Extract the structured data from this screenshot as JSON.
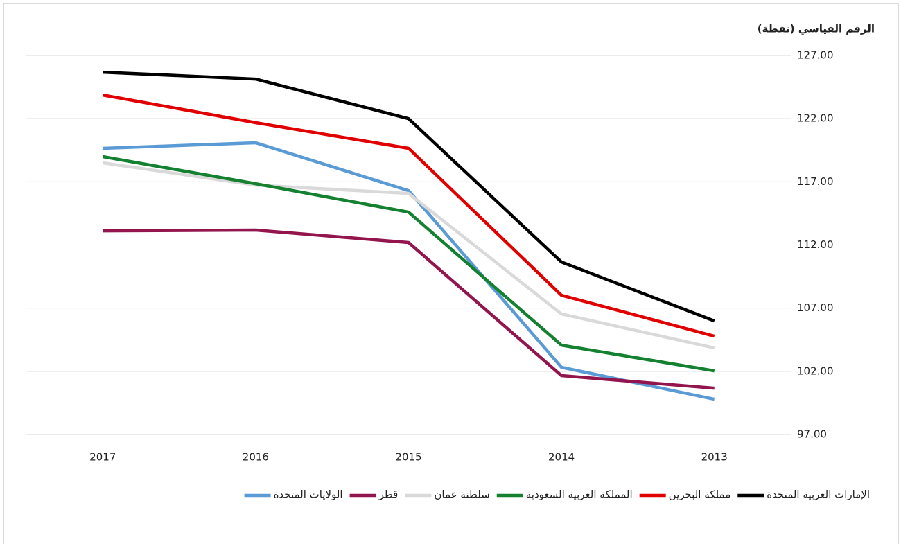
{
  "chart_data": {
    "type": "line",
    "y_axis_label": "الرقم القياسي (نقطة)",
    "categories": [
      "2017",
      "2016",
      "2015",
      "2014",
      "2013"
    ],
    "series": [
      {
        "name": "الإمارات العربية المتحدة",
        "color": "#000000",
        "values": [
          125.68,
          125.13,
          122.0,
          110.65,
          105.99
        ]
      },
      {
        "name": "مملكة البحرين",
        "color": "#e00000",
        "values": [
          123.87,
          121.68,
          119.65,
          108.02,
          104.78
        ]
      },
      {
        "name": "المملكة العربية السعودية",
        "color": "#13812f",
        "values": [
          118.99,
          116.85,
          114.6,
          104.07,
          102.04
        ]
      },
      {
        "name": "سلطنة عمان",
        "color": "#d9d9d9",
        "values": [
          118.5,
          116.74,
          116.08,
          106.54,
          103.85
        ]
      },
      {
        "name": "قطر",
        "color": "#93154d",
        "values": [
          113.12,
          113.18,
          112.19,
          101.66,
          100.67
        ]
      },
      {
        "name": "الولايات المتحدة",
        "color": "#5b9bd5",
        "values": [
          119.65,
          120.09,
          116.3,
          102.32,
          99.79
        ]
      }
    ],
    "ylim": [
      97,
      127
    ],
    "yticks": [
      {
        "value": 97,
        "label": "97.00"
      },
      {
        "value": 102,
        "label": "102.00"
      },
      {
        "value": 107,
        "label": "107.00"
      },
      {
        "value": 112,
        "label": "112.00"
      },
      {
        "value": 117,
        "label": "117.00"
      },
      {
        "value": 122,
        "label": "122.00"
      },
      {
        "value": 127,
        "label": "127.00"
      }
    ],
    "grid": true,
    "legend": "bottom"
  }
}
